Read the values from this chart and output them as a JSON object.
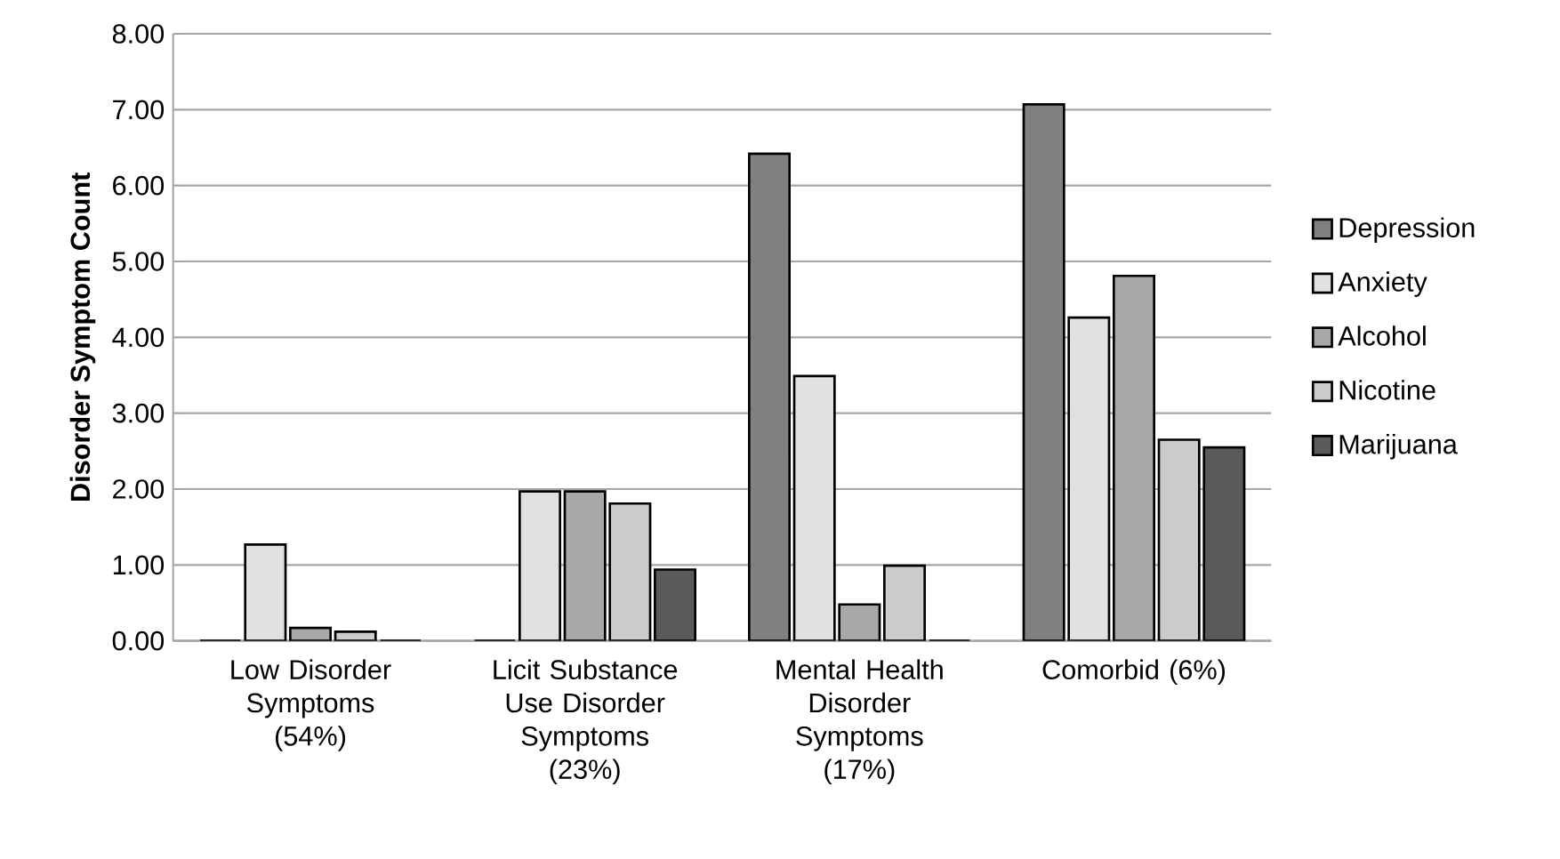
{
  "chart_data": {
    "type": "bar",
    "ylabel": "Disorder Symptom Count",
    "categories": [
      "Low Disorder Symptoms (54%)",
      "Licit Substance Use Disorder Symptoms (23%)",
      "Mental Health Disorder Symptoms (17%)",
      "Comorbid (6%)"
    ],
    "series": [
      {
        "name": "Depression",
        "color": "#808080",
        "values": [
          0,
          0,
          6.42,
          7.07
        ]
      },
      {
        "name": "Anxiety",
        "color": "#e0e0e0",
        "values": [
          1.27,
          1.97,
          3.49,
          4.26
        ]
      },
      {
        "name": "Alcohol",
        "color": "#a8a8a8",
        "values": [
          0.17,
          1.97,
          0.48,
          4.81
        ]
      },
      {
        "name": "Nicotine",
        "color": "#cbcbcb",
        "values": [
          0.12,
          1.81,
          0.99,
          2.65
        ]
      },
      {
        "name": "Marijuana",
        "color": "#5a5a5a",
        "values": [
          0,
          0.94,
          0,
          2.55
        ]
      }
    ],
    "ylim": [
      0,
      8
    ],
    "yticks": [
      {
        "value": 0,
        "label": "0.00"
      },
      {
        "value": 1,
        "label": "1.00"
      },
      {
        "value": 2,
        "label": "2.00"
      },
      {
        "value": 3,
        "label": "3.00"
      },
      {
        "value": 4,
        "label": "4.00"
      },
      {
        "value": 5,
        "label": "5.00"
      },
      {
        "value": 6,
        "label": "6.00"
      },
      {
        "value": 7,
        "label": "7.00"
      },
      {
        "value": 8,
        "label": "8.00"
      }
    ],
    "grid": "y",
    "legend": "right"
  }
}
